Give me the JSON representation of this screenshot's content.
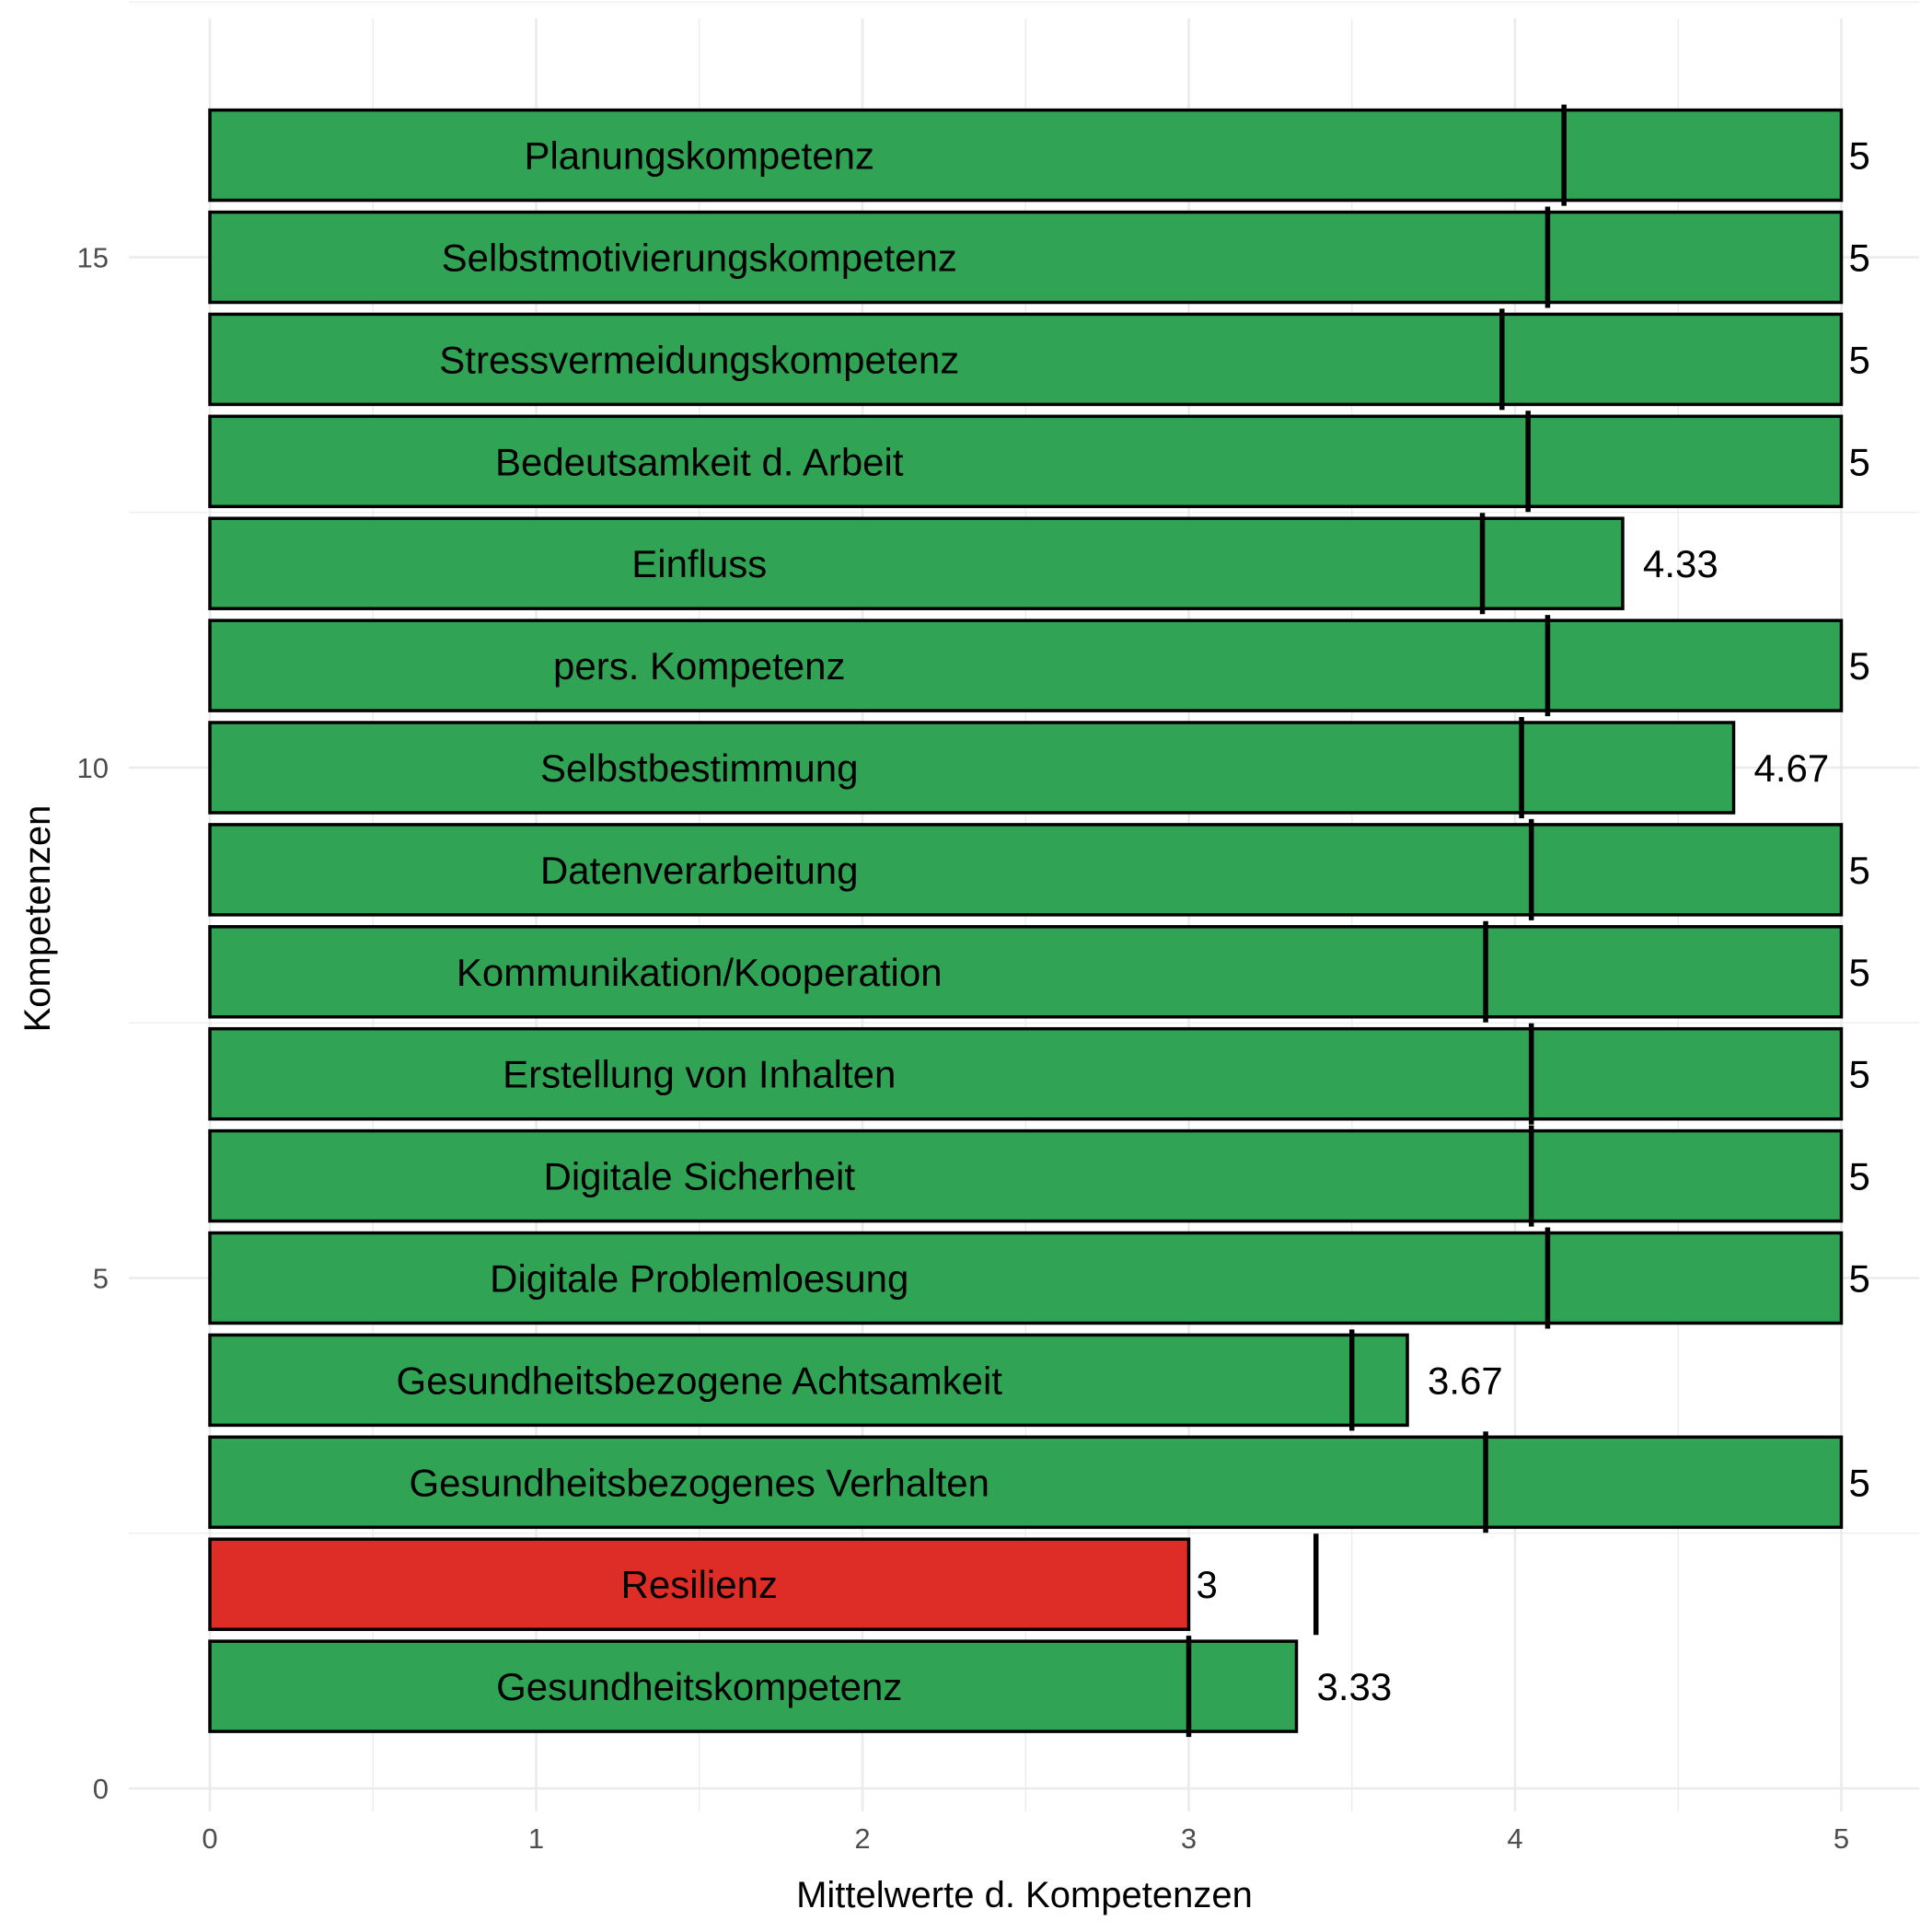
{
  "chart_data": {
    "type": "bar",
    "orientation": "horizontal",
    "xlabel": "Mittelwerte d. Kompetenzen",
    "ylabel": "Kompetenzen",
    "xlim": [
      0,
      5
    ],
    "ylim": [
      0,
      17
    ],
    "x_ticks": [
      "0",
      "1",
      "2",
      "3",
      "4",
      "5"
    ],
    "y_ticks": [
      "0",
      "5",
      "10",
      "15"
    ],
    "grid": true,
    "colors": {
      "above": "#31a354",
      "below": "#de2d26"
    },
    "bars": [
      {
        "position": 1,
        "label": "Gesundheitskompetenz",
        "value": 3.33,
        "value_label": "3.33",
        "marker": 3.0,
        "status": "above"
      },
      {
        "position": 2,
        "label": "Resilienz",
        "value": 3.0,
        "value_label": "3",
        "marker": 3.39,
        "status": "below"
      },
      {
        "position": 3,
        "label": "Gesundheitsbezogenes Verhalten",
        "value": 5.0,
        "value_label": "5",
        "marker": 3.91,
        "status": "above"
      },
      {
        "position": 4,
        "label": "Gesundheitsbezogene Achtsamkeit",
        "value": 3.67,
        "value_label": "3.67",
        "marker": 3.5,
        "status": "above"
      },
      {
        "position": 5,
        "label": "Digitale Problemloesung",
        "value": 5.0,
        "value_label": "5",
        "marker": 4.1,
        "status": "above"
      },
      {
        "position": 6,
        "label": "Digitale Sicherheit",
        "value": 5.0,
        "value_label": "5",
        "marker": 4.05,
        "status": "above"
      },
      {
        "position": 7,
        "label": "Erstellung von Inhalten",
        "value": 5.0,
        "value_label": "5",
        "marker": 4.05,
        "status": "above"
      },
      {
        "position": 8,
        "label": "Kommunikation/Kooperation",
        "value": 5.0,
        "value_label": "5",
        "marker": 3.91,
        "status": "above"
      },
      {
        "position": 9,
        "label": "Datenverarbeitung",
        "value": 5.0,
        "value_label": "5",
        "marker": 4.05,
        "status": "above"
      },
      {
        "position": 10,
        "label": "Selbstbestimmung",
        "value": 4.67,
        "value_label": "4.67",
        "marker": 4.02,
        "status": "above"
      },
      {
        "position": 11,
        "label": "pers. Kompetenz",
        "value": 5.0,
        "value_label": "5",
        "marker": 4.1,
        "status": "above"
      },
      {
        "position": 12,
        "label": "Einfluss",
        "value": 4.33,
        "value_label": "4.33",
        "marker": 3.9,
        "status": "above"
      },
      {
        "position": 13,
        "label": "Bedeutsamkeit d. Arbeit",
        "value": 5.0,
        "value_label": "5",
        "marker": 4.04,
        "status": "above"
      },
      {
        "position": 14,
        "label": "Stressvermeidungskompetenz",
        "value": 5.0,
        "value_label": "5",
        "marker": 3.96,
        "status": "above"
      },
      {
        "position": 15,
        "label": "Selbstmotivierungskompetenz",
        "value": 5.0,
        "value_label": "5",
        "marker": 4.1,
        "status": "above"
      },
      {
        "position": 16,
        "label": "Planungskompetenz",
        "value": 5.0,
        "value_label": "5",
        "marker": 4.15,
        "status": "above"
      }
    ]
  }
}
